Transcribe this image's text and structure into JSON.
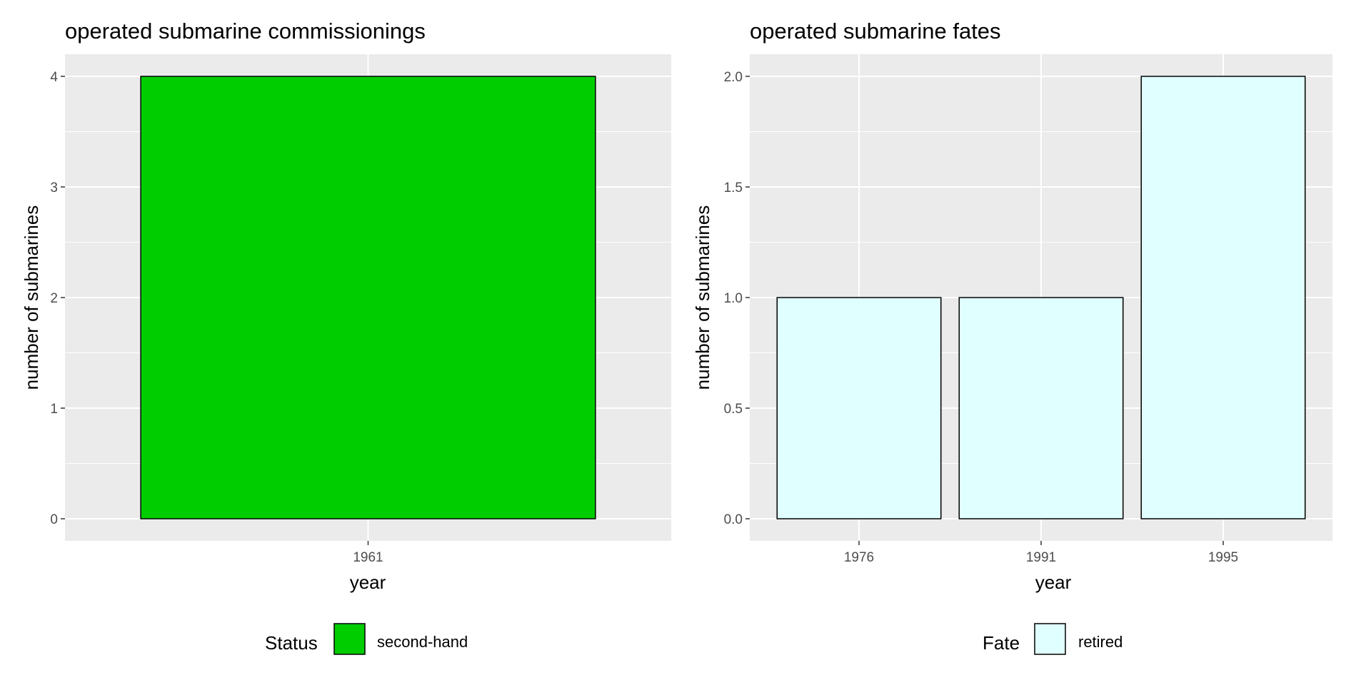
{
  "chart_data": [
    {
      "type": "bar",
      "title": "operated submarine commissionings",
      "xlabel": "year",
      "ylabel": "number of submarines",
      "categories": [
        "1961"
      ],
      "values": [
        4
      ],
      "ylim": [
        0,
        4
      ],
      "yticks": [
        0,
        1,
        2,
        3,
        4
      ],
      "ytick_labels": [
        "0",
        "1",
        "2",
        "3",
        "4"
      ],
      "grid": true,
      "panel_background": "#ebebeb",
      "bar_fill": "#00cd00",
      "bar_outline": "#000000",
      "legend": {
        "title": "Status",
        "position": "bottom",
        "entries": [
          {
            "label": "second-hand",
            "color": "#00cd00"
          }
        ]
      }
    },
    {
      "type": "bar",
      "title": "operated submarine fates",
      "xlabel": "year",
      "ylabel": "number of submarines",
      "categories": [
        "1976",
        "1991",
        "1995"
      ],
      "values": [
        1,
        1,
        2
      ],
      "ylim": [
        0,
        2
      ],
      "yticks": [
        0,
        0.5,
        1,
        1.5,
        2
      ],
      "ytick_labels": [
        "0.0",
        "0.5",
        "1.0",
        "1.5",
        "2.0"
      ],
      "grid": true,
      "panel_background": "#ebebeb",
      "bar_fill": "#e0ffff",
      "bar_outline": "#000000",
      "legend": {
        "title": "Fate",
        "position": "bottom",
        "entries": [
          {
            "label": "retired",
            "color": "#e0ffff"
          }
        ]
      }
    }
  ]
}
